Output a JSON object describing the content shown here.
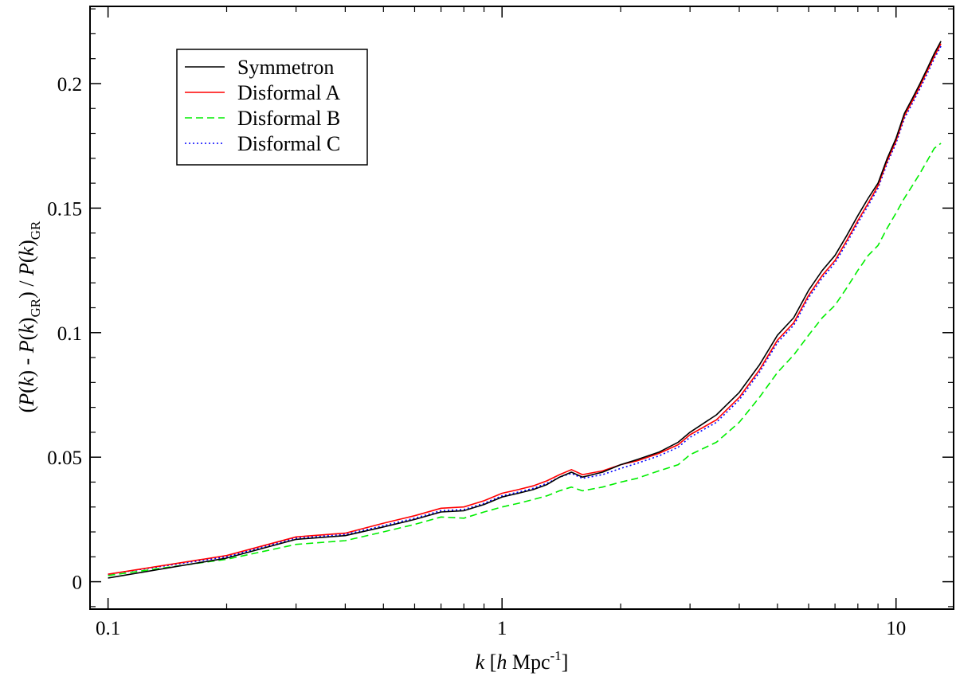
{
  "chart_data": {
    "type": "line",
    "xlabel": {
      "var": "k",
      "mid": " [",
      "h": "h",
      "unit": " Mpc",
      "sup": "-1",
      "end": "]"
    },
    "ylabel": {
      "p1": "(",
      "P1": "P",
      "p2": "(",
      "k1": "k",
      "p3": ") - ",
      "P2": "P",
      "p4": "(",
      "k2": "k",
      "p5": ")",
      "sub1": "GR",
      "p6": ") / ",
      "P3": "P",
      "p7": "(",
      "k3": "k",
      "p8": ")",
      "sub2": "GR"
    },
    "xscale": "log",
    "xlim": [
      0.09,
      14
    ],
    "ylim": [
      -0.011,
      0.231
    ],
    "xticks": [
      {
        "value": 0.1,
        "label": "0.1"
      },
      {
        "value": 1,
        "label": "1"
      },
      {
        "value": 10,
        "label": "10"
      }
    ],
    "yticks": [
      {
        "value": 0,
        "label": "0"
      },
      {
        "value": 0.05,
        "label": "0.05"
      },
      {
        "value": 0.1,
        "label": "0.1"
      },
      {
        "value": 0.15,
        "label": "0.15"
      },
      {
        "value": 0.2,
        "label": "0.2"
      }
    ],
    "legend_position": "top-left",
    "grid": false,
    "series": [
      {
        "name": "Symmetron",
        "color": "#000000",
        "dash": "solid",
        "x": [
          0.1,
          0.2,
          0.3,
          0.4,
          0.5,
          0.6,
          0.7,
          0.8,
          0.9,
          1.0,
          1.1,
          1.2,
          1.3,
          1.4,
          1.5,
          1.6,
          1.8,
          2.0,
          2.2,
          2.5,
          2.8,
          3.0,
          3.5,
          4.0,
          4.5,
          5.0,
          5.5,
          6.0,
          6.5,
          7.0,
          7.5,
          8.0,
          8.5,
          9.0,
          9.5,
          10.0,
          10.5,
          11.0,
          11.5,
          12.0,
          12.5,
          13.0
        ],
        "y": [
          0.0015,
          0.0095,
          0.017,
          0.0185,
          0.022,
          0.025,
          0.028,
          0.0285,
          0.031,
          0.034,
          0.0355,
          0.037,
          0.039,
          0.042,
          0.044,
          0.042,
          0.044,
          0.047,
          0.049,
          0.052,
          0.056,
          0.06,
          0.067,
          0.076,
          0.087,
          0.099,
          0.106,
          0.117,
          0.125,
          0.131,
          0.139,
          0.147,
          0.154,
          0.16,
          0.17,
          0.178,
          0.188,
          0.194,
          0.2,
          0.206,
          0.212,
          0.217
        ]
      },
      {
        "name": "Disformal A",
        "color": "#ff0000",
        "dash": "solid",
        "x": [
          0.1,
          0.2,
          0.3,
          0.4,
          0.5,
          0.6,
          0.7,
          0.8,
          0.9,
          1.0,
          1.1,
          1.2,
          1.3,
          1.4,
          1.5,
          1.6,
          1.8,
          2.0,
          2.2,
          2.5,
          2.8,
          3.0,
          3.5,
          4.0,
          4.5,
          5.0,
          5.5,
          6.0,
          6.5,
          7.0,
          7.5,
          8.0,
          8.5,
          9.0,
          9.5,
          10.0,
          10.5,
          11.0,
          11.5,
          12.0,
          12.5,
          13.0
        ],
        "y": [
          0.003,
          0.0105,
          0.018,
          0.0195,
          0.0235,
          0.0265,
          0.0295,
          0.03,
          0.0325,
          0.0355,
          0.037,
          0.0385,
          0.0405,
          0.043,
          0.045,
          0.043,
          0.0445,
          0.047,
          0.0485,
          0.0515,
          0.055,
          0.059,
          0.065,
          0.074,
          0.085,
          0.097,
          0.104,
          0.115,
          0.123,
          0.129,
          0.137,
          0.145,
          0.152,
          0.159,
          0.169,
          0.177,
          0.187,
          0.193,
          0.199,
          0.205,
          0.211,
          0.216
        ]
      },
      {
        "name": "Disformal B",
        "color": "#00ee00",
        "dash": "dashed",
        "x": [
          0.1,
          0.2,
          0.3,
          0.4,
          0.5,
          0.6,
          0.7,
          0.8,
          0.9,
          1.0,
          1.1,
          1.2,
          1.3,
          1.4,
          1.5,
          1.6,
          1.8,
          2.0,
          2.2,
          2.5,
          2.8,
          3.0,
          3.5,
          4.0,
          4.5,
          5.0,
          5.5,
          6.0,
          6.5,
          7.0,
          7.5,
          8.0,
          8.5,
          9.0,
          9.5,
          10.0,
          10.5,
          11.0,
          11.5,
          12.0,
          12.5,
          13.0
        ],
        "y": [
          0.0025,
          0.009,
          0.015,
          0.0165,
          0.02,
          0.023,
          0.026,
          0.0255,
          0.028,
          0.03,
          0.0315,
          0.033,
          0.0345,
          0.0365,
          0.038,
          0.0365,
          0.038,
          0.04,
          0.0415,
          0.0445,
          0.047,
          0.051,
          0.056,
          0.064,
          0.074,
          0.084,
          0.091,
          0.099,
          0.106,
          0.111,
          0.118,
          0.125,
          0.131,
          0.135,
          0.142,
          0.148,
          0.154,
          0.159,
          0.164,
          0.169,
          0.174,
          0.176
        ]
      },
      {
        "name": "Disformal C",
        "color": "#0000ff",
        "dash": "dotted",
        "x": [
          0.1,
          0.2,
          0.3,
          0.4,
          0.5,
          0.6,
          0.7,
          0.8,
          0.9,
          1.0,
          1.1,
          1.2,
          1.3,
          1.4,
          1.5,
          1.6,
          1.8,
          2.0,
          2.2,
          2.5,
          2.8,
          3.0,
          3.5,
          4.0,
          4.5,
          5.0,
          5.5,
          6.0,
          6.5,
          7.0,
          7.5,
          8.0,
          8.5,
          9.0,
          9.5,
          10.0,
          10.5,
          11.0,
          11.5,
          12.0,
          12.5,
          13.0
        ],
        "y": [
          0.003,
          0.01,
          0.0175,
          0.019,
          0.0225,
          0.0255,
          0.0285,
          0.029,
          0.0315,
          0.0345,
          0.036,
          0.0375,
          0.0395,
          0.042,
          0.0435,
          0.0415,
          0.043,
          0.0455,
          0.0475,
          0.0505,
          0.054,
          0.058,
          0.064,
          0.073,
          0.084,
          0.096,
          0.103,
          0.114,
          0.122,
          0.128,
          0.136,
          0.144,
          0.151,
          0.158,
          0.168,
          0.176,
          0.186,
          0.192,
          0.198,
          0.204,
          0.21,
          0.215
        ]
      }
    ]
  }
}
